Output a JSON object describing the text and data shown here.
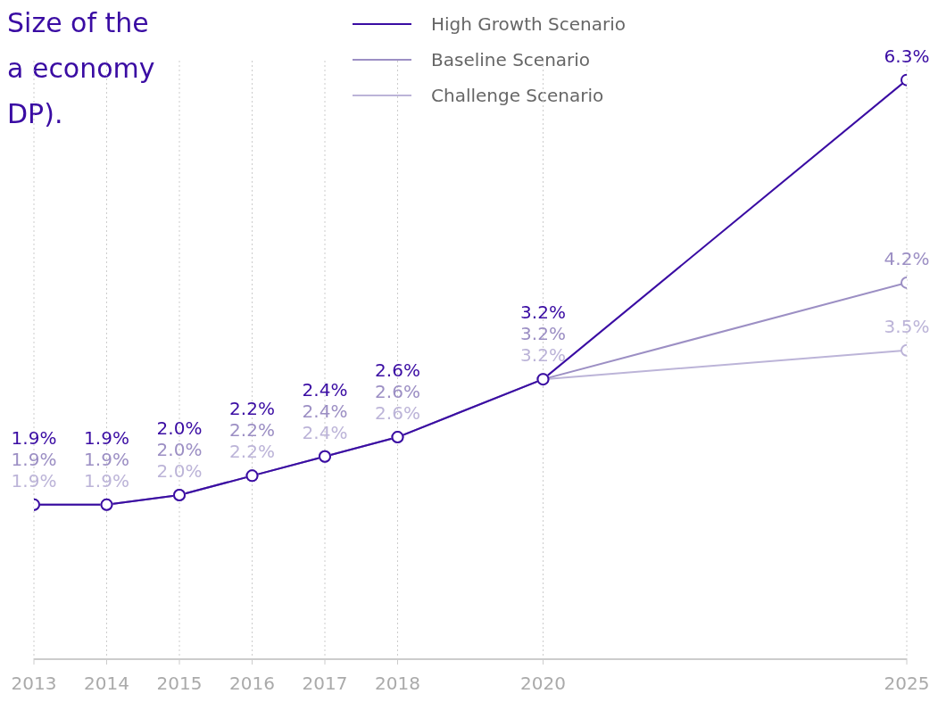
{
  "chart_data": {
    "type": "line",
    "title": "Size of the\na economy\nDP).",
    "x": [
      2013,
      2014,
      2015,
      2016,
      2017,
      2018,
      2020,
      2025
    ],
    "xlim": [
      2013,
      2025
    ],
    "xticks": [
      2013,
      2014,
      2015,
      2016,
      2017,
      2018,
      2020,
      2025
    ],
    "ylim": [
      0.3,
      6.5
    ],
    "tick_labels": "x",
    "grid": "x",
    "legend": "top",
    "marker": "circle",
    "series": [
      {
        "name": "High Growth Scenario",
        "color": "#3a0ca3",
        "values": [
          1.9,
          1.9,
          2.0,
          2.2,
          2.4,
          2.6,
          3.2,
          6.3
        ],
        "value_labels": [
          "1.9%",
          "1.9%",
          "2.0%",
          "2.2%",
          "2.4%",
          "2.6%",
          "3.2%",
          "6.3%"
        ]
      },
      {
        "name": "Baseline Scenario",
        "color": "#9c8fc4",
        "values": [
          1.9,
          1.9,
          2.0,
          2.2,
          2.4,
          2.6,
          3.2,
          4.2
        ],
        "value_labels": [
          "1.9%",
          "1.9%",
          "2.0%",
          "2.2%",
          "2.4%",
          "2.6%",
          "3.2%",
          "4.2%"
        ]
      },
      {
        "name": "Challenge Scenario",
        "color": "#bcb4d8",
        "values": [
          1.9,
          1.9,
          2.0,
          2.2,
          2.4,
          2.6,
          3.2,
          3.5
        ],
        "value_labels": [
          "1.9%",
          "1.9%",
          "2.0%",
          "2.2%",
          "2.4%",
          "2.6%",
          "3.2%",
          "3.5%"
        ]
      }
    ]
  }
}
